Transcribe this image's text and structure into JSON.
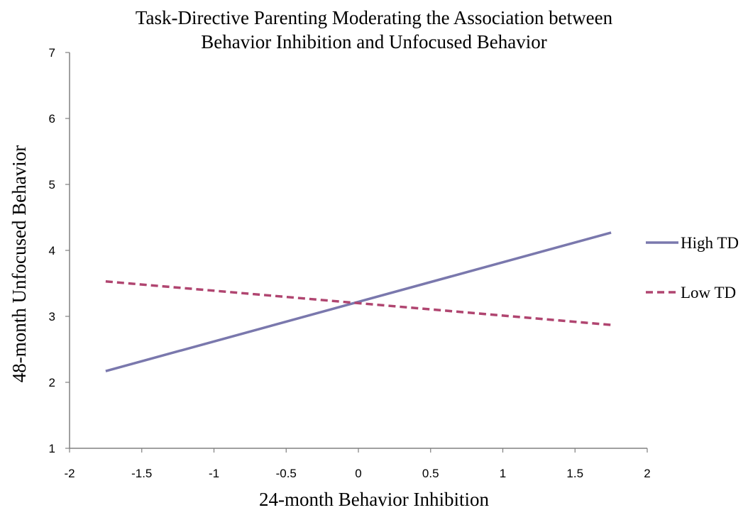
{
  "chart_data": {
    "type": "line",
    "title_lines": [
      "Task-Directive Parenting Moderating the Association between",
      "Behavior Inhibition and Unfocused Behavior"
    ],
    "xlabel": "24-month Behavior Inhibition",
    "ylabel": "48-month  Unfocused Behavior",
    "xlim": [
      -2,
      2
    ],
    "ylim": [
      1,
      7
    ],
    "x_ticks": [
      -2,
      -1.5,
      -1,
      -0.5,
      0,
      0.5,
      1,
      1.5,
      2
    ],
    "y_ticks": [
      1,
      2,
      3,
      4,
      5,
      6,
      7
    ],
    "grid": false,
    "legend_position": "right",
    "series": [
      {
        "name": "High TD",
        "x": [
          -1.75,
          1.75
        ],
        "y": [
          2.17,
          4.27
        ],
        "color": "#7a78ad",
        "dash": "solid"
      },
      {
        "name": "Low TD",
        "x": [
          -1.75,
          1.75
        ],
        "y": [
          3.53,
          2.87
        ],
        "color": "#b04570",
        "dash": "dashed"
      }
    ]
  }
}
